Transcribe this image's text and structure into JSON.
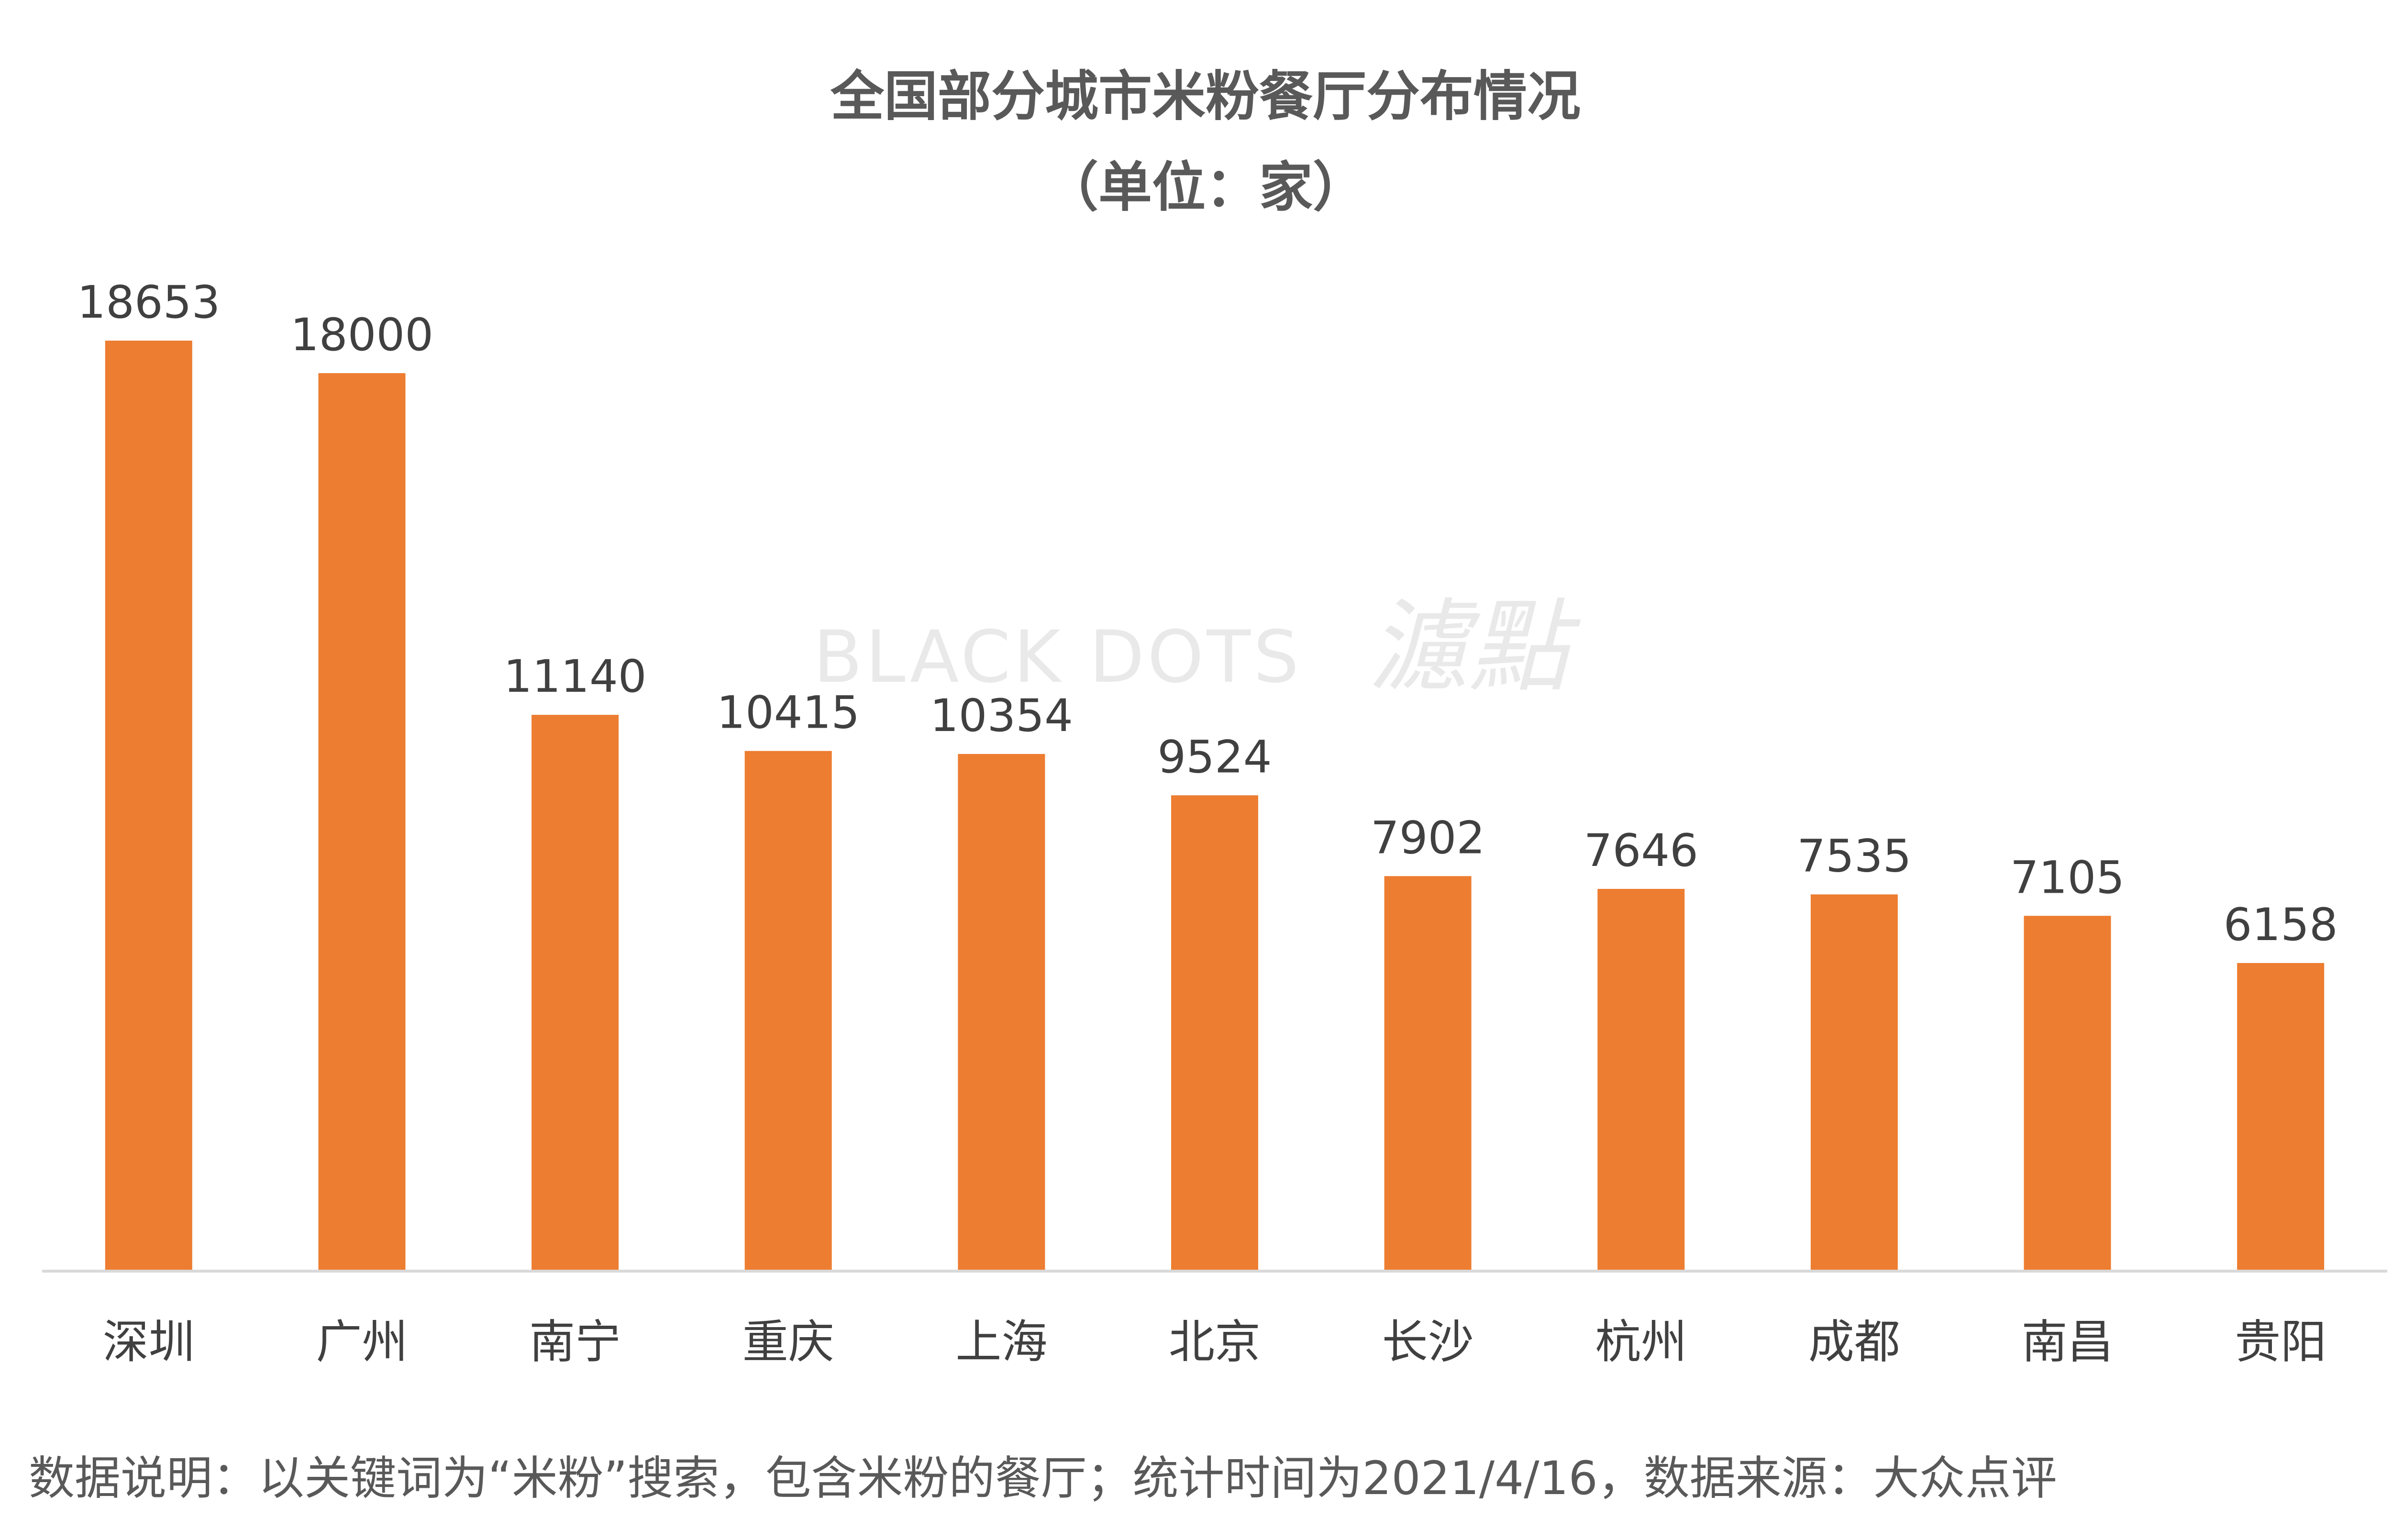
{
  "chart_data": {
    "type": "bar",
    "title": "全国部分城市米粉餐厅分布情况",
    "subtitle": "（单位：家）",
    "categories": [
      "深圳",
      "广州",
      "南宁",
      "重庆",
      "上海",
      "北京",
      "长沙",
      "杭州",
      "成都",
      "南昌",
      "贵阳"
    ],
    "values": [
      18653,
      18000,
      11140,
      10415,
      10354,
      9524,
      7902,
      7646,
      7535,
      7105,
      6158
    ],
    "value_labels": [
      "18653",
      "18000",
      "11140",
      "10415",
      "10354",
      "9524",
      "7902",
      "7646",
      "7535",
      "7105",
      "6158"
    ],
    "ylim": [
      0,
      18653
    ],
    "grid": false,
    "legend": "none",
    "bar_color": "#ED7D31",
    "axis_color": "#D9D9D9",
    "title_color": "#595959",
    "text_color": "#404040"
  },
  "watermark": {
    "latin": "BLACK DOTS",
    "cjk": "濾點"
  },
  "footnote": "数据说明：以关键词为“米粉”搜索，包含米粉的餐厅；统计时间为2021/4/16，数据来源：大众点评"
}
